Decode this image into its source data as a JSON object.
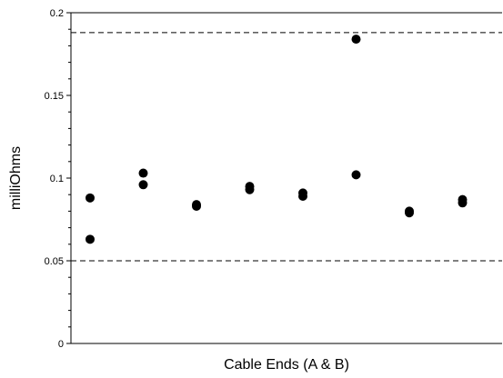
{
  "chart_data": {
    "type": "scatter",
    "xlabel": "Cable Ends (A & B)",
    "ylabel": "milliOhms",
    "ylim": [
      0,
      0.2
    ],
    "y_ticks": [
      "0",
      "0.05",
      "0.1",
      "0.15",
      "0.2"
    ],
    "y_tick_values": [
      0,
      0.05,
      0.1,
      0.15,
      0.2
    ],
    "x_positions": 8,
    "grid": false,
    "reference_lines": [
      0.188,
      0.05
    ],
    "points": [
      {
        "x": 1,
        "y": 0.088
      },
      {
        "x": 1,
        "y": 0.063
      },
      {
        "x": 2,
        "y": 0.103
      },
      {
        "x": 2,
        "y": 0.096
      },
      {
        "x": 3,
        "y": 0.084
      },
      {
        "x": 3,
        "y": 0.083
      },
      {
        "x": 4,
        "y": 0.095
      },
      {
        "x": 4,
        "y": 0.093
      },
      {
        "x": 5,
        "y": 0.091
      },
      {
        "x": 5,
        "y": 0.089
      },
      {
        "x": 6,
        "y": 0.184
      },
      {
        "x": 6,
        "y": 0.102
      },
      {
        "x": 7,
        "y": 0.08
      },
      {
        "x": 7,
        "y": 0.079
      },
      {
        "x": 8,
        "y": 0.087
      },
      {
        "x": 8,
        "y": 0.085
      }
    ],
    "marker_color": "#000000"
  }
}
